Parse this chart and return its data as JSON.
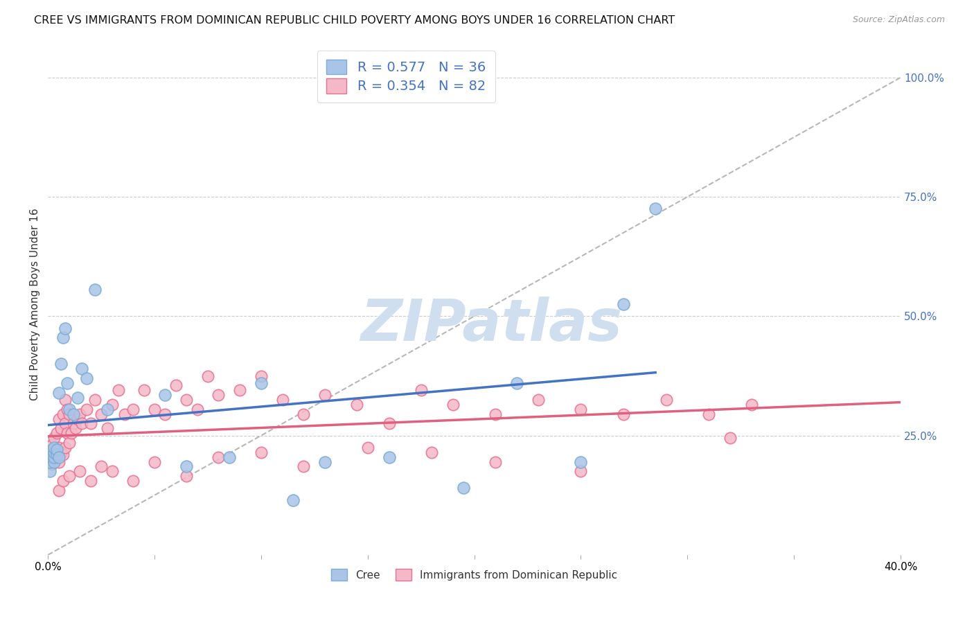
{
  "title": "CREE VS IMMIGRANTS FROM DOMINICAN REPUBLIC CHILD POVERTY AMONG BOYS UNDER 16 CORRELATION CHART",
  "source": "Source: ZipAtlas.com",
  "ylabel": "Child Poverty Among Boys Under 16",
  "xlim": [
    0.0,
    0.4
  ],
  "ylim": [
    0.0,
    1.05
  ],
  "xticks": [
    0.0,
    0.05,
    0.1,
    0.15,
    0.2,
    0.25,
    0.3,
    0.35,
    0.4
  ],
  "xtick_labels": [
    "0.0%",
    "",
    "",
    "",
    "",
    "",
    "",
    "",
    "40.0%"
  ],
  "ytick_labels_right": [
    "25.0%",
    "50.0%",
    "75.0%",
    "100.0%"
  ],
  "yticks_right": [
    0.25,
    0.5,
    0.75,
    1.0
  ],
  "grid_color": "#cccccc",
  "background_color": "#ffffff",
  "cree_color": "#aac4e8",
  "cree_edge_color": "#7bacd4",
  "dr_color": "#f4b8c8",
  "dr_edge_color": "#e87090",
  "blue_line_color": "#4472c4",
  "pink_line_color": "#e06080",
  "ref_line_color": "#b0b0b0",
  "title_fontsize": 11.5,
  "axis_label_fontsize": 11,
  "tick_fontsize": 11,
  "legend_label1": "R = 0.577   N = 36",
  "legend_label2": "R = 0.354   N = 82",
  "legend_color_text": "#4472c4",
  "watermark": "ZIPatlas",
  "watermark_color": "#d0dff0",
  "watermark_fontsize": 60,
  "cree_x": [
    0.001,
    0.001,
    0.002,
    0.002,
    0.002,
    0.003,
    0.003,
    0.003,
    0.003,
    0.004,
    0.004,
    0.005,
    0.005,
    0.006,
    0.007,
    0.008,
    0.009,
    0.01,
    0.012,
    0.014,
    0.016,
    0.018,
    0.022,
    0.028,
    0.055,
    0.065,
    0.085,
    0.1,
    0.115,
    0.13,
    0.16,
    0.195,
    0.22,
    0.25,
    0.27,
    0.285
  ],
  "cree_y": [
    0.175,
    0.195,
    0.205,
    0.21,
    0.22,
    0.195,
    0.205,
    0.215,
    0.225,
    0.21,
    0.22,
    0.205,
    0.34,
    0.4,
    0.455,
    0.475,
    0.36,
    0.305,
    0.295,
    0.33,
    0.39,
    0.37,
    0.555,
    0.305,
    0.335,
    0.185,
    0.205,
    0.36,
    0.115,
    0.195,
    0.205,
    0.14,
    0.36,
    0.195,
    0.525,
    0.725
  ],
  "dr_x": [
    0.001,
    0.001,
    0.002,
    0.002,
    0.002,
    0.003,
    0.003,
    0.003,
    0.004,
    0.004,
    0.004,
    0.005,
    0.005,
    0.005,
    0.006,
    0.006,
    0.007,
    0.007,
    0.008,
    0.008,
    0.008,
    0.009,
    0.009,
    0.01,
    0.01,
    0.011,
    0.012,
    0.013,
    0.014,
    0.015,
    0.016,
    0.018,
    0.02,
    0.022,
    0.025,
    0.028,
    0.03,
    0.033,
    0.036,
    0.04,
    0.045,
    0.05,
    0.055,
    0.06,
    0.065,
    0.07,
    0.075,
    0.08,
    0.09,
    0.1,
    0.11,
    0.12,
    0.13,
    0.145,
    0.16,
    0.175,
    0.19,
    0.21,
    0.23,
    0.25,
    0.27,
    0.29,
    0.31,
    0.33,
    0.005,
    0.007,
    0.01,
    0.015,
    0.02,
    0.025,
    0.03,
    0.04,
    0.05,
    0.065,
    0.08,
    0.1,
    0.12,
    0.15,
    0.18,
    0.21,
    0.25,
    0.32
  ],
  "dr_y": [
    0.195,
    0.205,
    0.19,
    0.215,
    0.23,
    0.2,
    0.215,
    0.245,
    0.205,
    0.215,
    0.255,
    0.195,
    0.225,
    0.285,
    0.215,
    0.265,
    0.21,
    0.295,
    0.225,
    0.275,
    0.325,
    0.255,
    0.305,
    0.235,
    0.295,
    0.255,
    0.275,
    0.265,
    0.285,
    0.295,
    0.275,
    0.305,
    0.275,
    0.325,
    0.295,
    0.265,
    0.315,
    0.345,
    0.295,
    0.305,
    0.345,
    0.305,
    0.295,
    0.355,
    0.325,
    0.305,
    0.375,
    0.335,
    0.345,
    0.375,
    0.325,
    0.295,
    0.335,
    0.315,
    0.275,
    0.345,
    0.315,
    0.295,
    0.325,
    0.305,
    0.295,
    0.325,
    0.295,
    0.315,
    0.135,
    0.155,
    0.165,
    0.175,
    0.155,
    0.185,
    0.175,
    0.155,
    0.195,
    0.165,
    0.205,
    0.215,
    0.185,
    0.225,
    0.215,
    0.195,
    0.175,
    0.245
  ]
}
